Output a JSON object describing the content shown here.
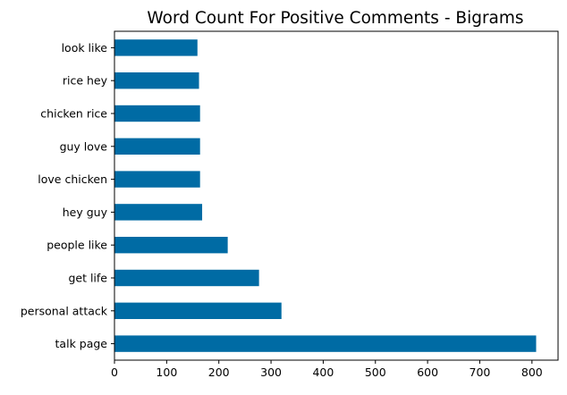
{
  "chart_data": {
    "type": "bar",
    "orientation": "horizontal",
    "title": "Word Count For Positive Comments - Bigrams",
    "xlabel": "",
    "ylabel": "",
    "categories": [
      "talk page",
      "personal attack",
      "get life",
      "people like",
      "hey guy",
      "love chicken",
      "guy love",
      "chicken rice",
      "rice hey",
      "look like"
    ],
    "values": [
      808,
      320,
      277,
      217,
      168,
      164,
      164,
      164,
      162,
      159
    ],
    "xlim": [
      0,
      850
    ],
    "xticks": [
      0,
      100,
      200,
      300,
      400,
      500,
      600,
      700,
      800
    ],
    "grid": false,
    "bar_color": "#006ba4"
  }
}
